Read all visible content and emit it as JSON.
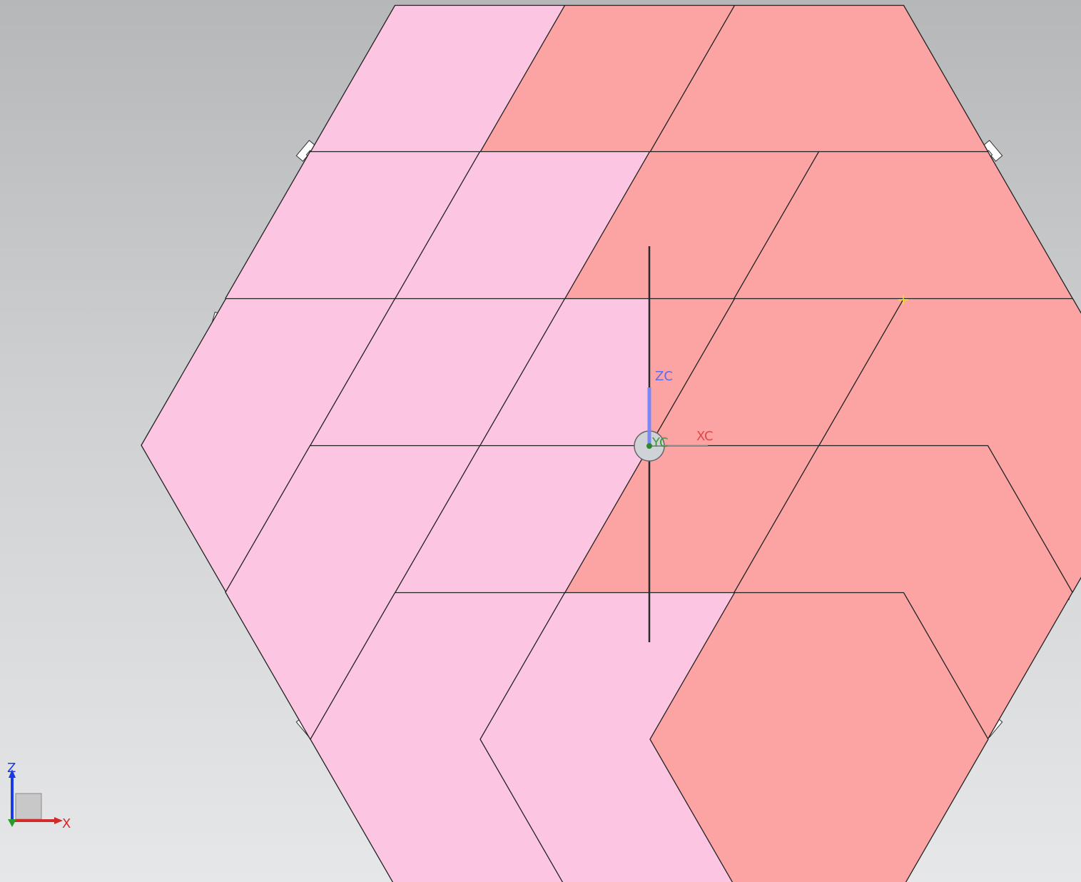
{
  "viewport": {
    "background_top": "#b6b7b9",
    "background_bottom": "#e6e7e9"
  },
  "model": {
    "ring_color": "#eae6d2",
    "backplate_color": "#0fa0ec",
    "segment_color_left": "#fcc6e3",
    "segment_color_right": "#fca3a3",
    "segment_edge_color": "#222222",
    "rod_color": "#f0a81a"
  },
  "wcs": {
    "zc_label": "ZC",
    "xc_label": "XC",
    "yc_label": "YC",
    "zc_color": "#5a6cf0",
    "xc_color": "#e04848",
    "yc_color": "#3a9a3a"
  },
  "triad": {
    "z_label": "Z",
    "x_label": "X",
    "z_color": "#1a3ae8",
    "x_color": "#d42a2a",
    "y_color": "#2a9a2a"
  },
  "cursor_marker": {
    "icon": "yellow-cross-icon",
    "color": "#f5e020"
  }
}
